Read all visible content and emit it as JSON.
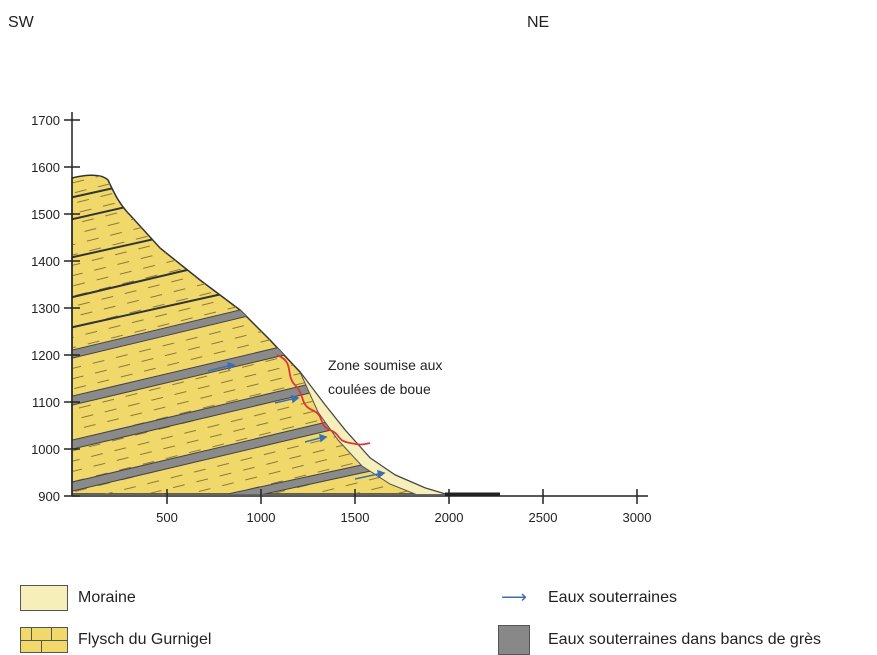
{
  "orientation": {
    "left": "SW",
    "right": "NE"
  },
  "y_axis": {
    "ticks": [
      "900",
      "1000",
      "1100",
      "1200",
      "1300",
      "1400",
      "1500",
      "1600",
      "1700"
    ]
  },
  "x_axis": {
    "ticks": [
      "500",
      "1000",
      "1500",
      "2000",
      "2500",
      "3000"
    ]
  },
  "annotation": {
    "line1": "Zone soumise aux",
    "line2": "coulées de boue"
  },
  "legend": {
    "moraine": "Moraine",
    "flysch": "Flysch du Gurnigel",
    "groundwater": "Eaux souterraines",
    "groundwater_sandstone": "Eaux souterraines dans bancs de grès"
  },
  "colors": {
    "flysch": "#f1d86b",
    "moraine": "#f6efb9",
    "sandstone": "#8a8a8a",
    "groundwater_arrow": "#3b6fb0",
    "mudflow_zone": "#d9363e"
  }
}
